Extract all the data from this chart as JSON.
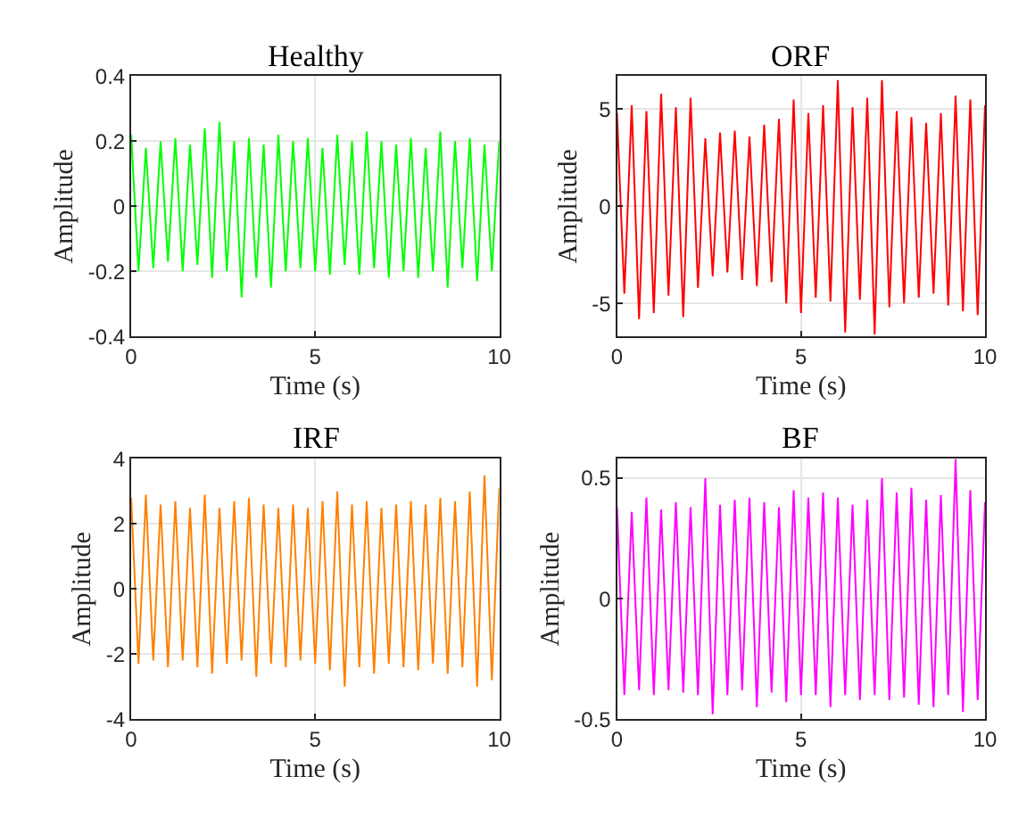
{
  "chart_data": [
    {
      "type": "line",
      "title": "Healthy",
      "xlabel": "Time (s)",
      "ylabel": "Amplitude",
      "xlim": [
        0,
        10
      ],
      "xticks": [
        0,
        5,
        10
      ],
      "ylim": [
        -0.4,
        0.4
      ],
      "yticks": [
        -0.4,
        -0.2,
        0,
        0.2,
        0.4
      ],
      "grid": true,
      "legend": false,
      "x": [
        0,
        0.2,
        0.4,
        0.6,
        0.8,
        1,
        1.2,
        1.4,
        1.6,
        1.8,
        2,
        2.2,
        2.4,
        2.6,
        2.8,
        3,
        3.2,
        3.4,
        3.6,
        3.8,
        4,
        4.2,
        4.4,
        4.6,
        4.8,
        5,
        5.2,
        5.4,
        5.6,
        5.8,
        6,
        6.2,
        6.4,
        6.6,
        6.8,
        7,
        7.2,
        7.4,
        7.6,
        7.8,
        8,
        8.2,
        8.4,
        8.6,
        8.8,
        9,
        9.2,
        9.4,
        9.6,
        9.8,
        10
      ],
      "series": [
        {
          "color": "#00ff00",
          "values": [
            0.22,
            -0.2,
            0.18,
            -0.19,
            0.2,
            -0.17,
            0.21,
            -0.2,
            0.19,
            -0.18,
            0.24,
            -0.22,
            0.26,
            -0.2,
            0.2,
            -0.28,
            0.21,
            -0.22,
            0.19,
            -0.25,
            0.22,
            -0.2,
            0.2,
            -0.19,
            0.21,
            -0.2,
            0.18,
            -0.21,
            0.22,
            -0.18,
            0.2,
            -0.21,
            0.23,
            -0.19,
            0.2,
            -0.22,
            0.19,
            -0.2,
            0.21,
            -0.22,
            0.18,
            -0.2,
            0.23,
            -0.25,
            0.2,
            -0.19,
            0.21,
            -0.23,
            0.19,
            -0.2,
            0.2
          ]
        }
      ]
    },
    {
      "type": "line",
      "title": "ORF",
      "xlabel": "Time (s)",
      "ylabel": "Amplitude",
      "xlim": [
        0,
        10
      ],
      "xticks": [
        0,
        5,
        10
      ],
      "ylim": [
        -6.7,
        6.7
      ],
      "yticks": [
        -5,
        0,
        5
      ],
      "grid": true,
      "legend": false,
      "x": [
        0,
        0.2,
        0.4,
        0.6,
        0.8,
        1,
        1.2,
        1.4,
        1.6,
        1.8,
        2,
        2.2,
        2.4,
        2.6,
        2.8,
        3,
        3.2,
        3.4,
        3.6,
        3.8,
        4,
        4.2,
        4.4,
        4.6,
        4.8,
        5,
        5.2,
        5.4,
        5.6,
        5.8,
        6,
        6.2,
        6.4,
        6.6,
        6.8,
        7,
        7.2,
        7.4,
        7.6,
        7.8,
        8,
        8.2,
        8.4,
        8.6,
        8.8,
        9,
        9.2,
        9.4,
        9.6,
        9.8,
        10
      ],
      "series": [
        {
          "color": "#ff0000",
          "values": [
            4.8,
            -4.5,
            5.2,
            -5.8,
            4.9,
            -5.5,
            5.8,
            -4.6,
            5.1,
            -5.7,
            5.6,
            -4.2,
            3.5,
            -3.6,
            3.8,
            -3.4,
            3.9,
            -3.8,
            3.6,
            -4.1,
            4.2,
            -3.9,
            4.5,
            -5.0,
            5.5,
            -5.5,
            4.8,
            -4.7,
            5.2,
            -4.9,
            6.5,
            -6.5,
            5.1,
            -4.8,
            5.6,
            -6.6,
            6.5,
            -5.2,
            4.9,
            -5.0,
            4.6,
            -4.7,
            4.3,
            -4.5,
            4.8,
            -5.1,
            5.7,
            -5.4,
            5.5,
            -5.6,
            5.2
          ]
        }
      ]
    },
    {
      "type": "line",
      "title": "IRF",
      "xlabel": "Time (s)",
      "ylabel": "Amplitude",
      "xlim": [
        0,
        10
      ],
      "xticks": [
        0,
        5,
        10
      ],
      "ylim": [
        -4,
        4
      ],
      "yticks": [
        -4,
        -2,
        0,
        2,
        4
      ],
      "grid": true,
      "legend": false,
      "x": [
        0,
        0.2,
        0.4,
        0.6,
        0.8,
        1,
        1.2,
        1.4,
        1.6,
        1.8,
        2,
        2.2,
        2.4,
        2.6,
        2.8,
        3,
        3.2,
        3.4,
        3.6,
        3.8,
        4,
        4.2,
        4.4,
        4.6,
        4.8,
        5,
        5.2,
        5.4,
        5.6,
        5.8,
        6,
        6.2,
        6.4,
        6.6,
        6.8,
        7,
        7.2,
        7.4,
        7.6,
        7.8,
        8,
        8.2,
        8.4,
        8.6,
        8.8,
        9,
        9.2,
        9.4,
        9.6,
        9.8,
        10
      ],
      "series": [
        {
          "color": "#ff8000",
          "values": [
            2.8,
            -2.3,
            2.9,
            -2.2,
            2.6,
            -2.4,
            2.7,
            -2.2,
            2.5,
            -2.4,
            2.9,
            -2.6,
            2.5,
            -2.3,
            2.7,
            -2.2,
            2.8,
            -2.7,
            2.6,
            -2.3,
            2.5,
            -2.4,
            2.6,
            -2.2,
            2.5,
            -2.3,
            2.7,
            -2.5,
            3.0,
            -3.0,
            2.6,
            -2.4,
            2.7,
            -2.6,
            2.5,
            -2.3,
            2.6,
            -2.4,
            2.7,
            -2.5,
            2.6,
            -2.3,
            2.8,
            -2.6,
            2.7,
            -2.4,
            3.0,
            -3.0,
            3.5,
            -2.8,
            3.1
          ]
        }
      ]
    },
    {
      "type": "line",
      "title": "BF",
      "xlabel": "Time (s)",
      "ylabel": "Amplitude",
      "xlim": [
        0,
        10
      ],
      "xticks": [
        0,
        5,
        10
      ],
      "ylim": [
        -0.5,
        0.58
      ],
      "yticks": [
        -0.5,
        0,
        0.5
      ],
      "grid": true,
      "legend": false,
      "x": [
        0,
        0.2,
        0.4,
        0.6,
        0.8,
        1,
        1.2,
        1.4,
        1.6,
        1.8,
        2,
        2.2,
        2.4,
        2.6,
        2.8,
        3,
        3.2,
        3.4,
        3.6,
        3.8,
        4,
        4.2,
        4.4,
        4.6,
        4.8,
        5,
        5.2,
        5.4,
        5.6,
        5.8,
        6,
        6.2,
        6.4,
        6.6,
        6.8,
        7,
        7.2,
        7.4,
        7.6,
        7.8,
        8,
        8.2,
        8.4,
        8.6,
        8.8,
        9,
        9.2,
        9.4,
        9.6,
        9.8,
        10
      ],
      "series": [
        {
          "color": "#ff00ff",
          "values": [
            0.38,
            -0.4,
            0.36,
            -0.38,
            0.42,
            -0.4,
            0.37,
            -0.38,
            0.4,
            -0.39,
            0.38,
            -0.4,
            0.5,
            -0.48,
            0.39,
            -0.4,
            0.41,
            -0.38,
            0.42,
            -0.45,
            0.4,
            -0.39,
            0.38,
            -0.43,
            0.45,
            -0.4,
            0.42,
            -0.4,
            0.44,
            -0.45,
            0.42,
            -0.4,
            0.39,
            -0.42,
            0.41,
            -0.4,
            0.5,
            -0.42,
            0.44,
            -0.41,
            0.46,
            -0.44,
            0.41,
            -0.45,
            0.43,
            -0.4,
            0.58,
            -0.47,
            0.45,
            -0.42,
            0.4
          ]
        }
      ]
    }
  ]
}
